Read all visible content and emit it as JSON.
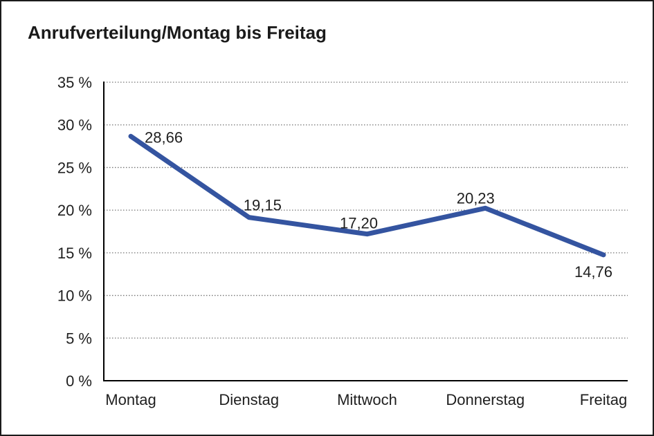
{
  "frame": {
    "background_color": "#ffffff",
    "border_color": "#1b1b1b"
  },
  "chart_data": {
    "type": "line",
    "title": "Anrufverteilung/Montag bis Freitag",
    "categories": [
      "Montag",
      "Dienstag",
      "Mittwoch",
      "Donnerstag",
      "Freitag"
    ],
    "series": [
      {
        "name": "Anrufverteilung",
        "values": [
          28.66,
          19.15,
          17.2,
          20.23,
          14.76
        ]
      }
    ],
    "point_labels": [
      "28,66",
      "19,15",
      "17,20",
      "20,23",
      "14,76"
    ],
    "y_ticks": [
      {
        "value": 0,
        "label": "0 %"
      },
      {
        "value": 5,
        "label": "5 %"
      },
      {
        "value": 10,
        "label": "10 %"
      },
      {
        "value": 15,
        "label": "15 %"
      },
      {
        "value": 20,
        "label": "20 %"
      },
      {
        "value": 25,
        "label": "25 %"
      },
      {
        "value": 30,
        "label": "30 %"
      },
      {
        "value": 35,
        "label": "35 %"
      }
    ],
    "ylim": [
      0,
      35
    ],
    "xlabel": "",
    "ylabel": "",
    "legend": "none",
    "grid": "horizontal-dotted",
    "colors": {
      "line": "#3454A0",
      "text": "#1f1f1f",
      "grid": "#737373",
      "axis": "#000000"
    }
  }
}
